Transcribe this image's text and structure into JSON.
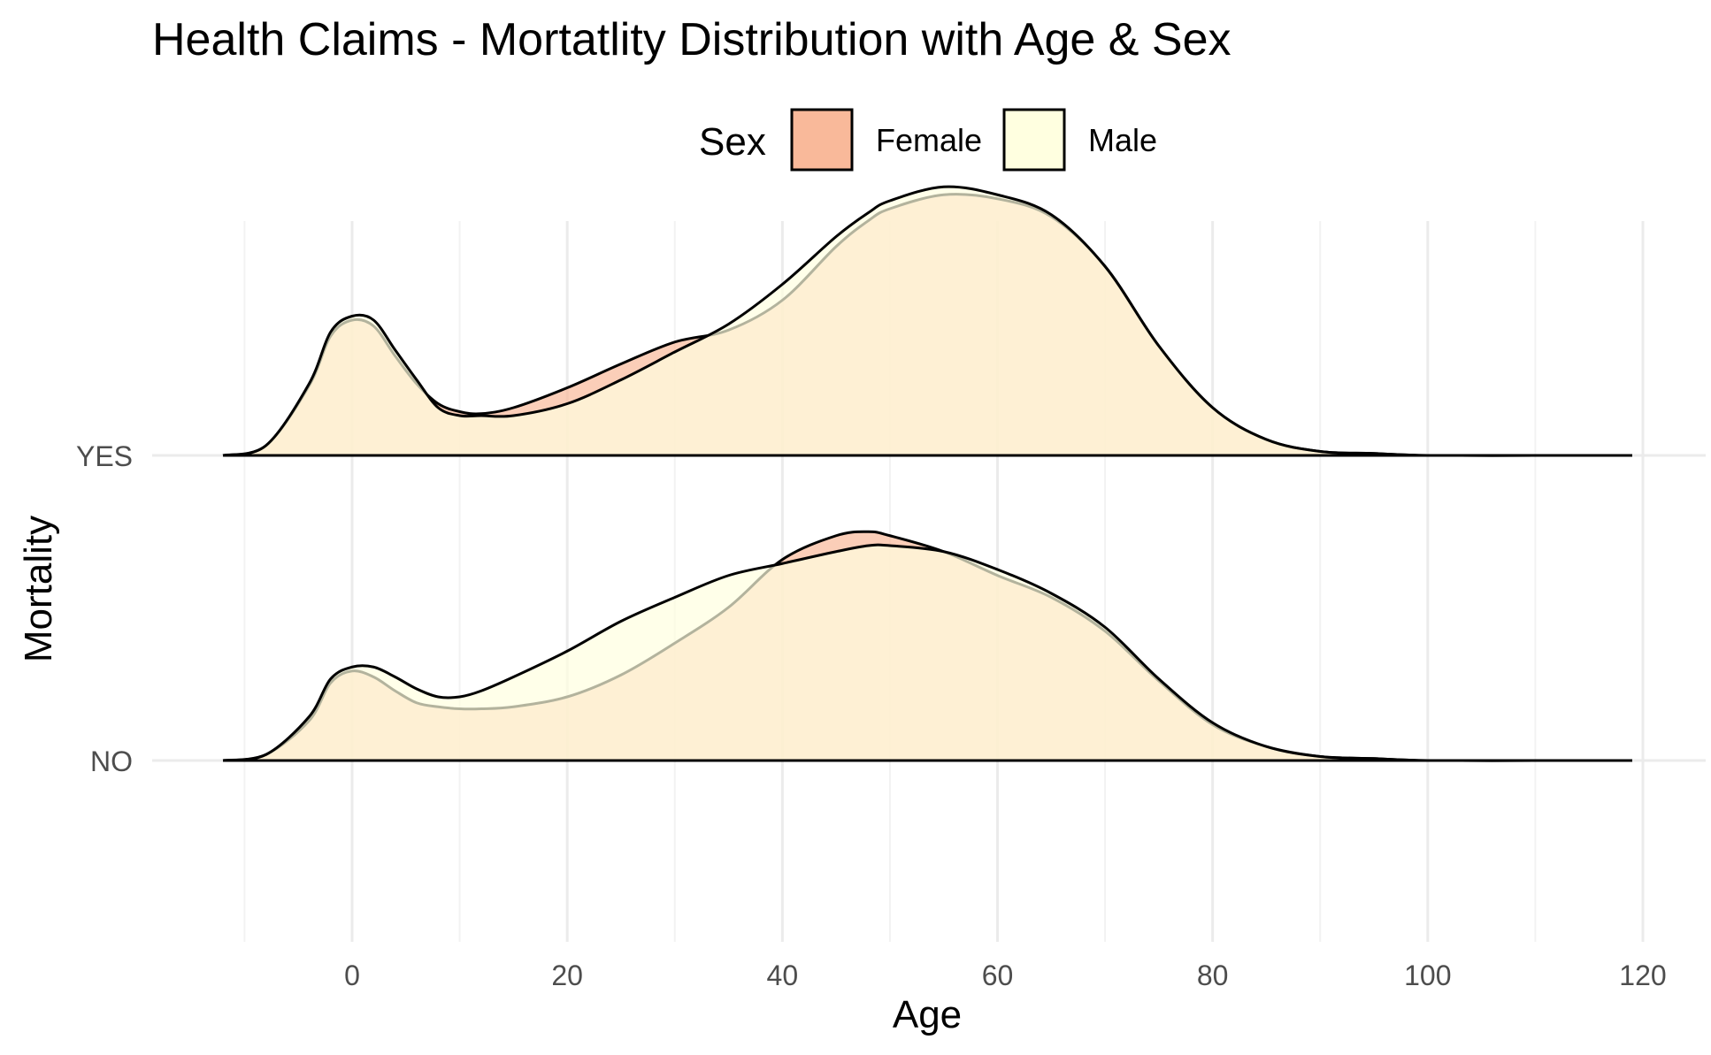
{
  "chart_data": {
    "type": "area",
    "subtype": "ridgeline-density",
    "title": "Health Claims - Mortatlity Distribution with Age & Sex",
    "xlabel": "Age",
    "ylabel": "Mortality",
    "xlim": [
      -12,
      119
    ],
    "x_ticks": [
      0,
      20,
      40,
      60,
      80,
      100,
      120
    ],
    "categories": [
      "NO",
      "YES"
    ],
    "legend": {
      "title": "Sex",
      "position": "top",
      "entries": [
        {
          "name": "Female",
          "color": "#f9b99a"
        },
        {
          "name": "Male",
          "color": "#ffffe0"
        }
      ]
    },
    "fill_opacity": 0.7,
    "grid": true,
    "x": [
      -12,
      -8,
      -4,
      -2,
      0,
      2,
      4,
      6,
      8,
      10,
      12,
      15,
      20,
      25,
      30,
      35,
      40,
      45,
      48,
      50,
      55,
      60,
      65,
      70,
      75,
      80,
      85,
      90,
      95,
      100,
      110,
      119
    ],
    "series": [
      {
        "name": "Female",
        "category": "NO",
        "values": [
          0.0,
          0.03,
          0.2,
          0.39,
          0.45,
          0.42,
          0.35,
          0.29,
          0.27,
          0.26,
          0.26,
          0.27,
          0.32,
          0.43,
          0.59,
          0.77,
          1.01,
          1.13,
          1.15,
          1.13,
          1.05,
          0.93,
          0.82,
          0.65,
          0.4,
          0.18,
          0.07,
          0.02,
          0.01,
          0.0,
          0.0,
          0.0
        ]
      },
      {
        "name": "Male",
        "category": "NO",
        "values": [
          0.0,
          0.03,
          0.22,
          0.41,
          0.47,
          0.47,
          0.42,
          0.36,
          0.32,
          0.32,
          0.35,
          0.42,
          0.55,
          0.7,
          0.82,
          0.93,
          0.99,
          1.05,
          1.08,
          1.08,
          1.05,
          0.96,
          0.84,
          0.67,
          0.41,
          0.19,
          0.07,
          0.02,
          0.01,
          0.0,
          0.0,
          0.0
        ]
      },
      {
        "name": "Female",
        "category": "YES",
        "values": [
          0.0,
          0.05,
          0.35,
          0.6,
          0.68,
          0.65,
          0.5,
          0.36,
          0.26,
          0.22,
          0.21,
          0.24,
          0.34,
          0.46,
          0.57,
          0.63,
          0.78,
          1.05,
          1.18,
          1.24,
          1.31,
          1.29,
          1.2,
          0.95,
          0.55,
          0.24,
          0.08,
          0.02,
          0.01,
          0.0,
          0.0,
          0.0
        ]
      },
      {
        "name": "Male",
        "category": "YES",
        "values": [
          0.0,
          0.05,
          0.36,
          0.62,
          0.7,
          0.68,
          0.53,
          0.38,
          0.24,
          0.2,
          0.2,
          0.2,
          0.26,
          0.38,
          0.52,
          0.66,
          0.86,
          1.1,
          1.22,
          1.28,
          1.35,
          1.31,
          1.21,
          0.95,
          0.55,
          0.24,
          0.08,
          0.02,
          0.01,
          0.0,
          0.0,
          0.0
        ]
      }
    ]
  }
}
